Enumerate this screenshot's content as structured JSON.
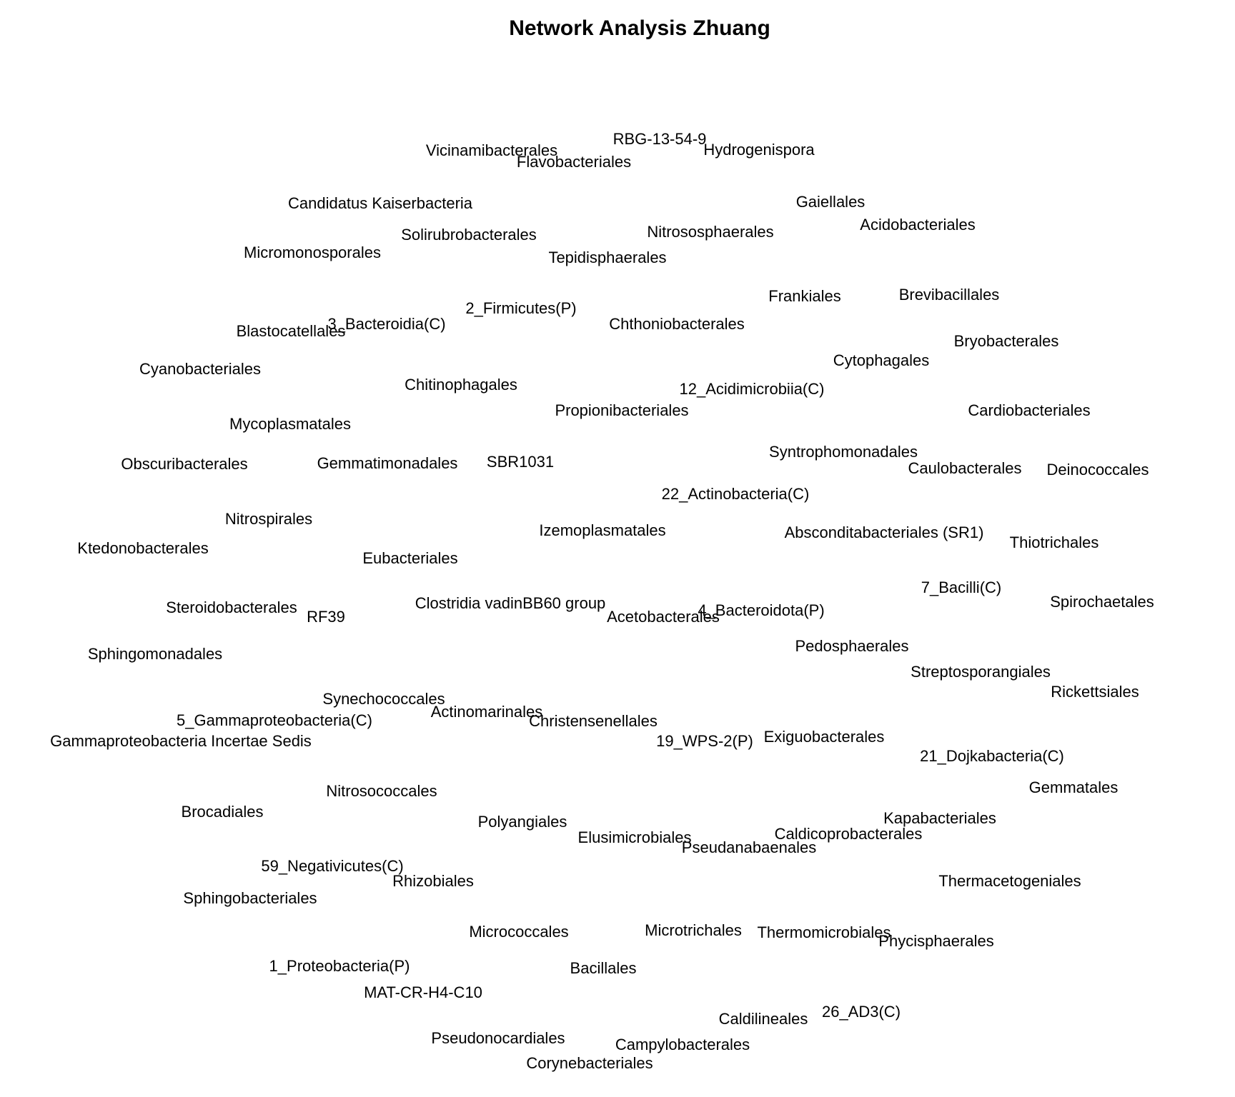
{
  "title": "Network Analysis Zhuang",
  "nodes": [
    "RBG-13-54-9",
    "Vicinamibacterales",
    "Hydrogenispora",
    "Flavobacteriales",
    "Candidatus Kaiserbacteria",
    "Gaiellales",
    "Acidobacteriales",
    "Nitrososphaerales",
    "Solirubrobacterales",
    "Micromonosporales",
    "Tepidisphaerales",
    "Frankiales",
    "Brevibacillales",
    "2_Firmicutes(P)",
    "3_Bacteroidia(C)",
    "Blastocatellales",
    "Chthoniobacterales",
    "Bryobacterales",
    "Cytophagales",
    "Cyanobacteriales",
    "Chitinophagales",
    "12_Acidimicrobiia(C)",
    "Propionibacteriales",
    "Cardiobacteriales",
    "Mycoplasmatales",
    "Syntrophomonadales",
    "Obscuribacterales",
    "Gemmatimonadales",
    "SBR1031",
    "Caulobacterales",
    "Deinococcales",
    "22_Actinobacteria(C)",
    "Nitrospirales",
    "Izemoplasmatales",
    "Absconditabacteriales (SR1)",
    "Thiotrichales",
    "Ktedonobacterales",
    "Eubacteriales",
    "7_Bacilli(C)",
    "Clostridia vadinBB60 group",
    "Spirochaetales",
    "Steroidobacterales",
    "4_Bacteroidota(P)",
    "RF39",
    "Acetobacterales",
    "Pedosphaerales",
    "Sphingomonadales",
    "Streptosporangiales",
    "Rickettsiales",
    "Synechococcales",
    "Actinomarinales",
    "5_Gammaproteobacteria(C)",
    "Christensenellales",
    "Exiguobacterales",
    "Gammaproteobacteria Incertae Sedis",
    "19_WPS-2(P)",
    "21_Dojkabacteria(C)",
    "Gemmatales",
    "Nitrosococcales",
    "Brocadiales",
    "Kapabacteriales",
    "Polyangiales",
    "Caldicoprobacterales",
    "Elusimicrobiales",
    "Pseudanabaenales",
    "59_Negativicutes(C)",
    "Rhizobiales",
    "Thermacetogeniales",
    "Sphingobacteriales",
    "Micrococcales",
    "Microtrichales",
    "Thermomicrobiales",
    "Phycisphaerales",
    "1_Proteobacteria(P)",
    "Bacillales",
    "MAT-CR-H4-C10",
    "26_AD3(C)",
    "Caldilineales",
    "Pseudonocardiales",
    "Campylobacterales",
    "Corynebacteriales"
  ]
}
